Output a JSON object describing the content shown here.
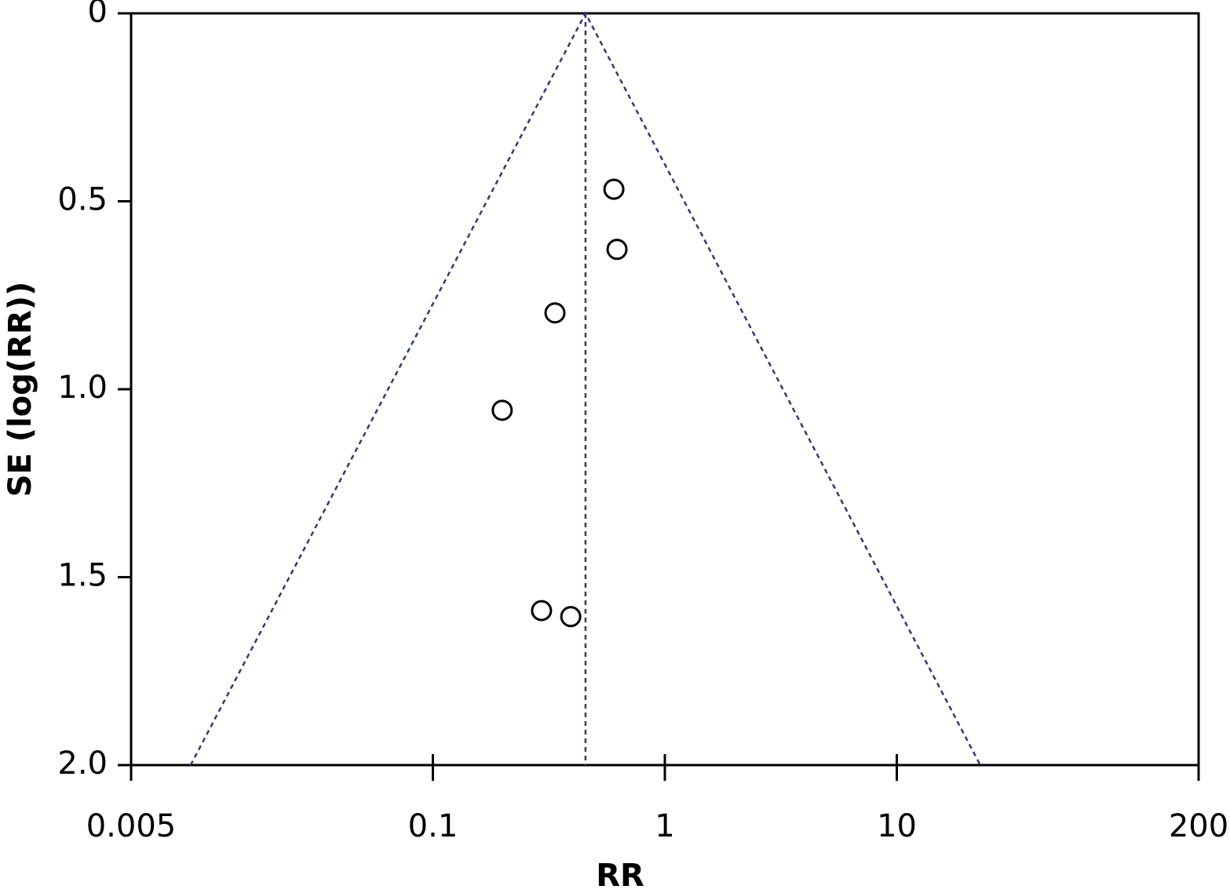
{
  "chart_data": {
    "type": "scatter",
    "x_label": "RR",
    "y_label": "SE (log(RR))",
    "x_log": true,
    "y_inverted": true,
    "xlim": [
      0.005,
      200
    ],
    "xticks": [
      0.005,
      0.1,
      1,
      10,
      200
    ],
    "ylim": [
      0,
      2.0
    ],
    "yticks": [
      0,
      0.5,
      {
        "value": 1.0,
        "label": "1.0"
      },
      1.5,
      {
        "value": 2.0,
        "label": "2.0"
      }
    ],
    "marker_color": "#000000",
    "line_color": "#2e3a7a",
    "x": [
      0.603,
      0.622,
      0.336,
      0.199,
      0.294,
      0.393
    ],
    "values": [
      0.468,
      0.628,
      0.797,
      1.056,
      1.589,
      1.605
    ],
    "funnel": {
      "x": [
        0.00903,
        0.455,
        22.9
      ],
      "y": [
        2.0,
        0,
        2.0
      ]
    },
    "center_line": {
      "x": [
        0.455,
        0.455
      ],
      "y": [
        0,
        2.0
      ]
    }
  }
}
